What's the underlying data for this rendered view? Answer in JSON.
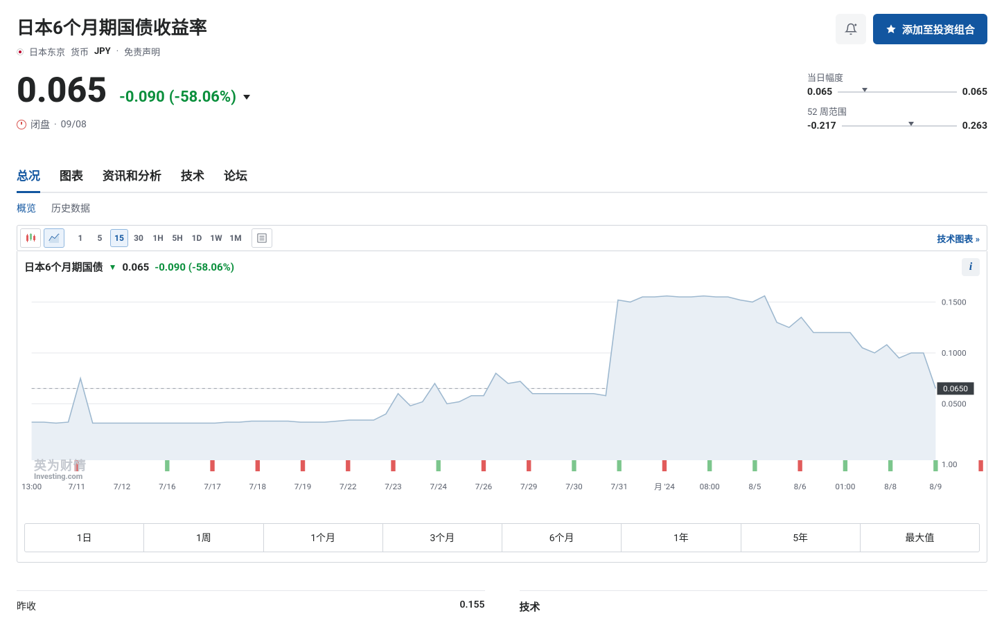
{
  "header": {
    "title": "日本6个月期国债收益率",
    "location": "日本东京",
    "currency_label": "货币",
    "currency_code": "JPY",
    "disclaimer": "免责声明",
    "bell_btn_name": "bell-add-icon",
    "add_portfolio": "添加至投资组合"
  },
  "quote": {
    "price": "0.065",
    "change": "-0.090",
    "change_pct": "(-58.06%)",
    "change_color": "#0a8f3c",
    "status": "闭盘",
    "status_date": "09/08"
  },
  "ranges": {
    "day": {
      "label": "当日幅度",
      "low": "0.065",
      "high": "0.065",
      "marker_pct": 20
    },
    "year": {
      "label": "52 周范围",
      "low": "-0.217",
      "high": "0.263",
      "marker_pct": 58
    }
  },
  "tabs": {
    "items": [
      "总况",
      "图表",
      "资讯和分析",
      "技术",
      "论坛"
    ],
    "active": 0
  },
  "subtabs": {
    "items": [
      "概览",
      "历史数据"
    ],
    "active": 0
  },
  "toolbar": {
    "intervals": [
      "1",
      "5",
      "15",
      "30",
      "1H",
      "5H",
      "1D",
      "1W",
      "1M"
    ],
    "active_interval": 2,
    "tech_chart": "技术图表"
  },
  "chart": {
    "type": "area",
    "name": "日本6个月期国债",
    "price": "0.065",
    "change": "-0.090",
    "change_pct": "(-58.06%)",
    "line_color": "#9db8cf",
    "fill_color": "#e9eff5",
    "grid_color": "#e5e7eb",
    "dash_color": "#9aa0a8",
    "bg": "#ffffff",
    "ylim": [
      0,
      0.17
    ],
    "y_ticks": [
      {
        "v": 0.15,
        "label": "0.1500"
      },
      {
        "v": 0.1,
        "label": "0.1000"
      },
      {
        "v": 0.065,
        "label": "0.0650",
        "badge": true
      },
      {
        "v": 0.05,
        "label": "0.0500"
      }
    ],
    "volume_y_label": "1.00",
    "x_labels": [
      "13:00",
      "7/11",
      "7/12",
      "7/16",
      "7/17",
      "7/18",
      "7/19",
      "7/22",
      "7/23",
      "7/24",
      "7/26",
      "7/29",
      "7/30",
      "7/31",
      "月 '24",
      "08:00",
      "8/5",
      "8/6",
      "01:00",
      "8/8",
      "8/9"
    ],
    "series": [
      0.032,
      0.032,
      0.031,
      0.032,
      0.075,
      0.031,
      0.031,
      0.031,
      0.031,
      0.031,
      0.031,
      0.031,
      0.031,
      0.031,
      0.031,
      0.031,
      0.032,
      0.032,
      0.033,
      0.033,
      0.033,
      0.033,
      0.032,
      0.032,
      0.032,
      0.033,
      0.034,
      0.034,
      0.034,
      0.04,
      0.06,
      0.048,
      0.052,
      0.07,
      0.05,
      0.052,
      0.058,
      0.058,
      0.08,
      0.07,
      0.072,
      0.06,
      0.06,
      0.06,
      0.06,
      0.06,
      0.06,
      0.058,
      0.152,
      0.15,
      0.155,
      0.155,
      0.156,
      0.155,
      0.155,
      0.156,
      0.155,
      0.155,
      0.152,
      0.15,
      0.156,
      0.13,
      0.125,
      0.135,
      0.12,
      0.12,
      0.12,
      0.12,
      0.105,
      0.1,
      0.108,
      0.095,
      0.1,
      0.1,
      0.065
    ],
    "volume_bars": [
      {
        "x": 1,
        "color": "#e15b5b"
      },
      {
        "x": 3,
        "color": "#7cc68d"
      },
      {
        "x": 4,
        "color": "#e15b5b"
      },
      {
        "x": 5,
        "color": "#e15b5b"
      },
      {
        "x": 6,
        "color": "#e15b5b"
      },
      {
        "x": 7,
        "color": "#e15b5b"
      },
      {
        "x": 8,
        "color": "#e15b5b"
      },
      {
        "x": 9,
        "color": "#7cc68d"
      },
      {
        "x": 10,
        "color": "#e15b5b"
      },
      {
        "x": 11,
        "color": "#e15b5b"
      },
      {
        "x": 12,
        "color": "#7cc68d"
      },
      {
        "x": 13,
        "color": "#7cc68d"
      },
      {
        "x": 14,
        "color": "#e15b5b"
      },
      {
        "x": 15,
        "color": "#7cc68d"
      },
      {
        "x": 16,
        "color": "#7cc68d"
      },
      {
        "x": 17,
        "color": "#e15b5b"
      },
      {
        "x": 18,
        "color": "#7cc68d"
      },
      {
        "x": 19,
        "color": "#7cc68d"
      },
      {
        "x": 20,
        "color": "#7cc68d"
      },
      {
        "x": 21,
        "color": "#e15b5b"
      }
    ],
    "watermark_cn": "英为财情",
    "watermark_en": "Investing.com"
  },
  "range_tabs": [
    "1日",
    "1周",
    "1个月",
    "3个月",
    "6个月",
    "1年",
    "5年",
    "最大值"
  ],
  "bottom": {
    "left": [
      {
        "k": "昨收",
        "v": "0.155"
      }
    ],
    "right_title": "技术"
  }
}
